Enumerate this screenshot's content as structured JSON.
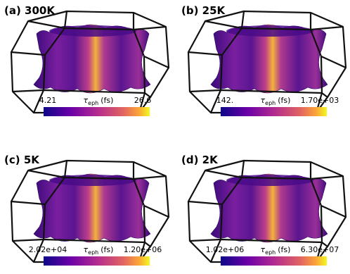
{
  "panels": [
    {
      "label": "(a) 300K",
      "min_label": "4.21",
      "max_label": "26.6",
      "colorbar_symbol": "τ",
      "colorbar_subscript": "eph",
      "colorbar_unit": "(fs)"
    },
    {
      "label": "(b) 25K",
      "min_label": "142.",
      "max_label": "1.70e+03",
      "colorbar_symbol": "τ",
      "colorbar_subscript": "eph",
      "colorbar_unit": "(fs)"
    },
    {
      "label": "(c) 5K",
      "min_label": "2.02e+04",
      "max_label": "1.20e+06",
      "colorbar_symbol": "τ",
      "colorbar_subscript": "eph",
      "colorbar_unit": "(fs)"
    },
    {
      "label": "(d) 2K",
      "min_label": "1.02e+06",
      "max_label": "6.30e+07",
      "colorbar_symbol": "τ",
      "colorbar_subscript": "eph",
      "colorbar_unit": "(fs)"
    }
  ]
}
